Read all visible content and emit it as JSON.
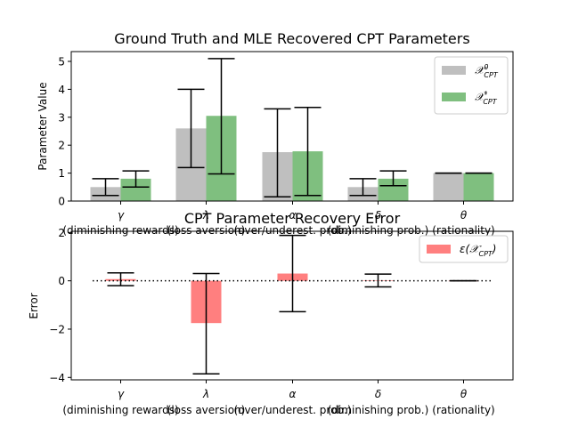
{
  "chart_data": [
    {
      "type": "bar",
      "title": "Ground Truth and MLE Recovered CPT Parameters",
      "xlabel": "",
      "ylabel": "Parameter Value",
      "ylim": [
        0,
        5.35
      ],
      "yticks": [
        "0",
        "1",
        "2",
        "3",
        "4",
        "5"
      ],
      "categories": [
        "γ",
        "λ",
        "α",
        "δ",
        "θ"
      ],
      "category_notes": [
        "(diminishing rewards)",
        "(loss aversion)",
        "(over/underest. prob.)",
        "(diminishing prob.)",
        "(rationality)"
      ],
      "series": [
        {
          "name": "𝒳⁰CPT",
          "name_main": "𝒳",
          "name_sup": "0",
          "name_sub": "CPT",
          "color": "#bfbfbf",
          "values": [
            0.5,
            2.6,
            1.75,
            0.5,
            1.0
          ],
          "err_low": [
            0.2,
            1.2,
            0.15,
            0.2,
            1.0
          ],
          "err_high": [
            0.8,
            4.0,
            3.3,
            0.8,
            1.0
          ]
        },
        {
          "name": "𝒳*CPT",
          "name_main": "𝒳",
          "name_sup": "*",
          "name_sub": "CPT",
          "color": "#7fbf7f",
          "values": [
            0.8,
            3.05,
            1.78,
            0.8,
            1.0
          ],
          "err_low": [
            0.5,
            0.97,
            0.2,
            0.55,
            1.0
          ],
          "err_high": [
            1.08,
            5.1,
            3.35,
            1.08,
            1.0
          ]
        }
      ],
      "grid": false,
      "legend": "top-right"
    },
    {
      "type": "bar",
      "title": "CPT Parameter Recovery Error",
      "xlabel": "",
      "ylabel": "Error",
      "ylim": [
        -4.1,
        2.05
      ],
      "yticks": [
        "−4",
        "−2",
        "0",
        "2"
      ],
      "categories": [
        "γ",
        "λ",
        "α",
        "δ",
        "θ"
      ],
      "category_notes": [
        "(diminishing rewards)",
        "(loss aversion)",
        "(over/underest. prob.)",
        "(diminishing prob.)",
        "(rationality)"
      ],
      "series": [
        {
          "name": "ε(𝒳CPT)",
          "name_prefix": "ε(",
          "name_main": "𝒳",
          "name_sub": "CPT",
          "name_suffix": ")",
          "color": "#ff7f7f",
          "values": [
            0.07,
            -1.75,
            0.3,
            0.02,
            0.0
          ],
          "err_low": [
            -0.2,
            -3.85,
            -1.28,
            -0.25,
            0.0
          ],
          "err_high": [
            0.33,
            0.3,
            1.88,
            0.28,
            0.0
          ]
        }
      ],
      "zero_line": "dotted",
      "grid": false,
      "legend": "top-right"
    }
  ]
}
